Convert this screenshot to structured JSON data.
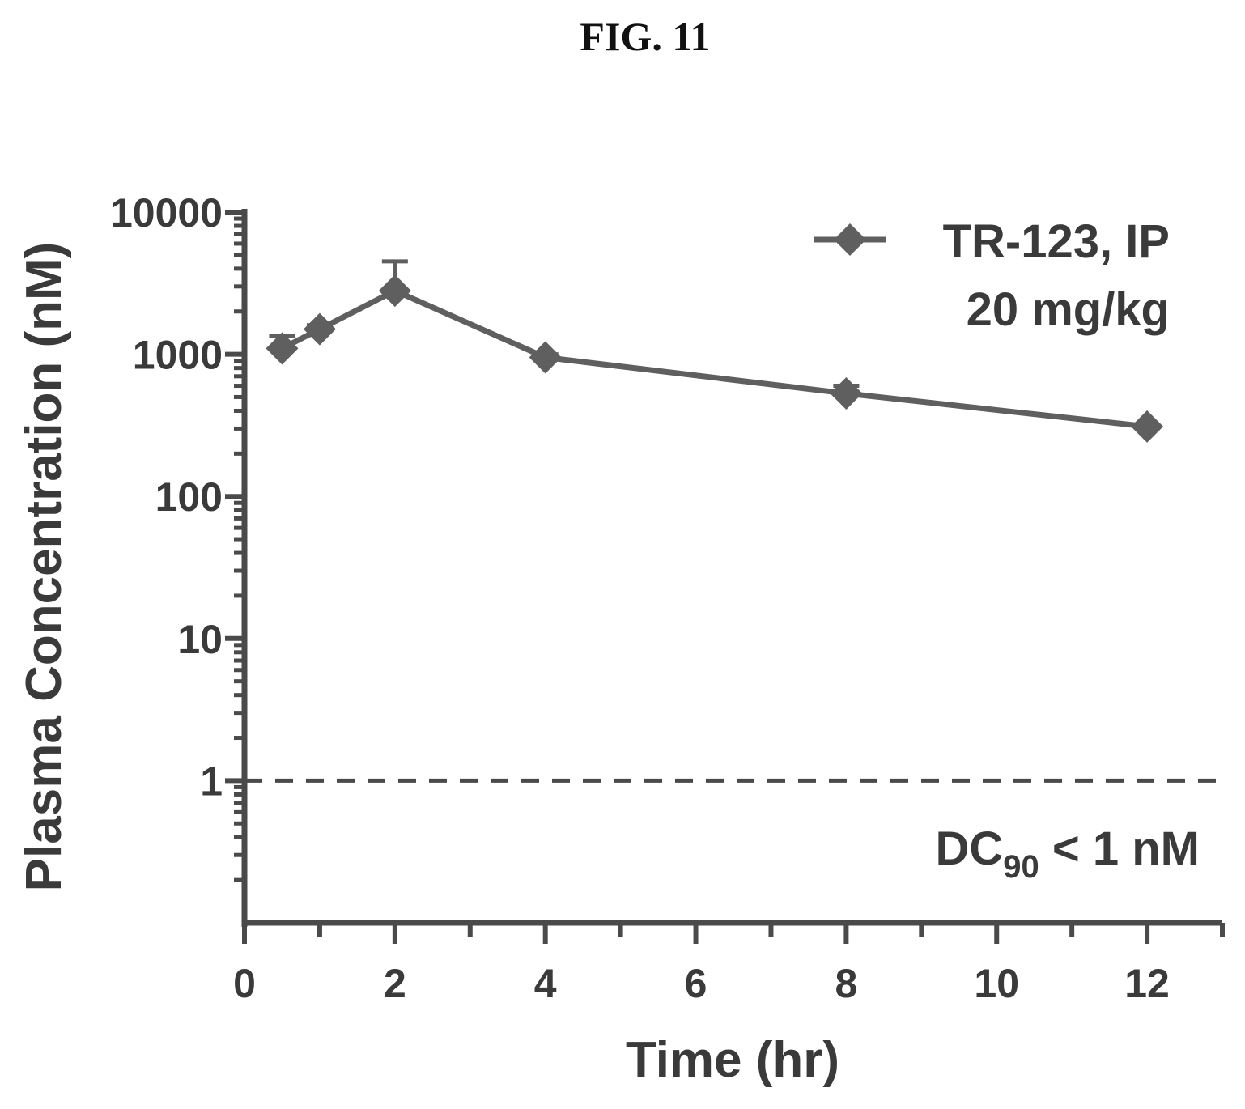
{
  "figure_label": "FIG. 11",
  "chart_data": {
    "type": "line",
    "xlabel": "Time (hr)",
    "ylabel": "Plasma Concentration (nM)",
    "yscale": "log",
    "xlim": [
      0,
      13
    ],
    "ylim": [
      0.1,
      10000
    ],
    "x_ticks": [
      0,
      2,
      4,
      6,
      8,
      10,
      12
    ],
    "x_minor_ticks": [
      1,
      3,
      5,
      7,
      9,
      11,
      13
    ],
    "y_ticks": [
      {
        "value": 1,
        "label": "1"
      },
      {
        "value": 10,
        "label": "10"
      },
      {
        "value": 100,
        "label": "100"
      },
      {
        "value": 1000,
        "label": "1000"
      },
      {
        "value": 10000,
        "label": "10000"
      }
    ],
    "grid": false,
    "legend_placement": "top-right",
    "series": [
      {
        "name": "TR-123, IP",
        "name_line2": "20 mg/kg",
        "color": "#5f5f5f",
        "marker": "diamond",
        "points": [
          {
            "x": 0.5,
            "y": 1100,
            "err_hi": 1350
          },
          {
            "x": 1,
            "y": 1500,
            "err_hi": 1600
          },
          {
            "x": 2,
            "y": 2800,
            "err_hi": 4500
          },
          {
            "x": 4,
            "y": 950,
            "err_hi": 1000
          },
          {
            "x": 8,
            "y": 530,
            "err_hi": 600
          },
          {
            "x": 12,
            "y": 310,
            "err_hi": 320
          }
        ]
      }
    ],
    "reference_line": {
      "y": 1,
      "style": "dashed",
      "label_prefix": "DC",
      "label_subscript": "90",
      "label_suffix": " < 1 nM"
    }
  }
}
